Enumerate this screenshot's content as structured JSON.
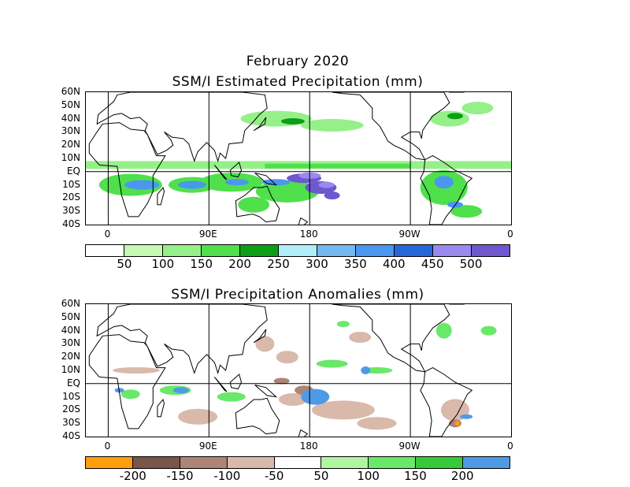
{
  "header": {
    "month_title": "February 2020",
    "panel1_title": "SSM/I Estimated Precipitation (mm)",
    "panel2_title": "SSM/I Precipitation Anomalies (mm)"
  },
  "axes": {
    "lat_labels": [
      "60N",
      "50N",
      "40N",
      "30N",
      "20N",
      "10N",
      "EQ",
      "10S",
      "20S",
      "30S",
      "40S"
    ],
    "lon_labels": [
      "0",
      "90E",
      "180",
      "90W",
      "0"
    ]
  },
  "map_extent": {
    "lon_range": [
      -20,
      360
    ],
    "lat_range": [
      -40,
      60
    ]
  },
  "colorbar_precip": {
    "colors": [
      "#ffffff",
      "#c6f9b4",
      "#96f08a",
      "#4fe04c",
      "#0c9e16",
      "#b0eefa",
      "#74b8f0",
      "#4b96ee",
      "#2766da",
      "#9a8af0",
      "#6f58cf"
    ],
    "labels": [
      "50",
      "100",
      "150",
      "200",
      "250",
      "300",
      "350",
      "400",
      "450",
      "500"
    ]
  },
  "colorbar_anom": {
    "colors": [
      "#ff9e0c",
      "#79554a",
      "#ae8476",
      "#d9b9aa",
      "#ffffff",
      "#b0f6a0",
      "#6ae86a",
      "#36c93a",
      "#4f9ae6"
    ],
    "labels": [
      "-200",
      "-150",
      "-100",
      "-50",
      "50",
      "100",
      "150",
      "200"
    ]
  }
}
